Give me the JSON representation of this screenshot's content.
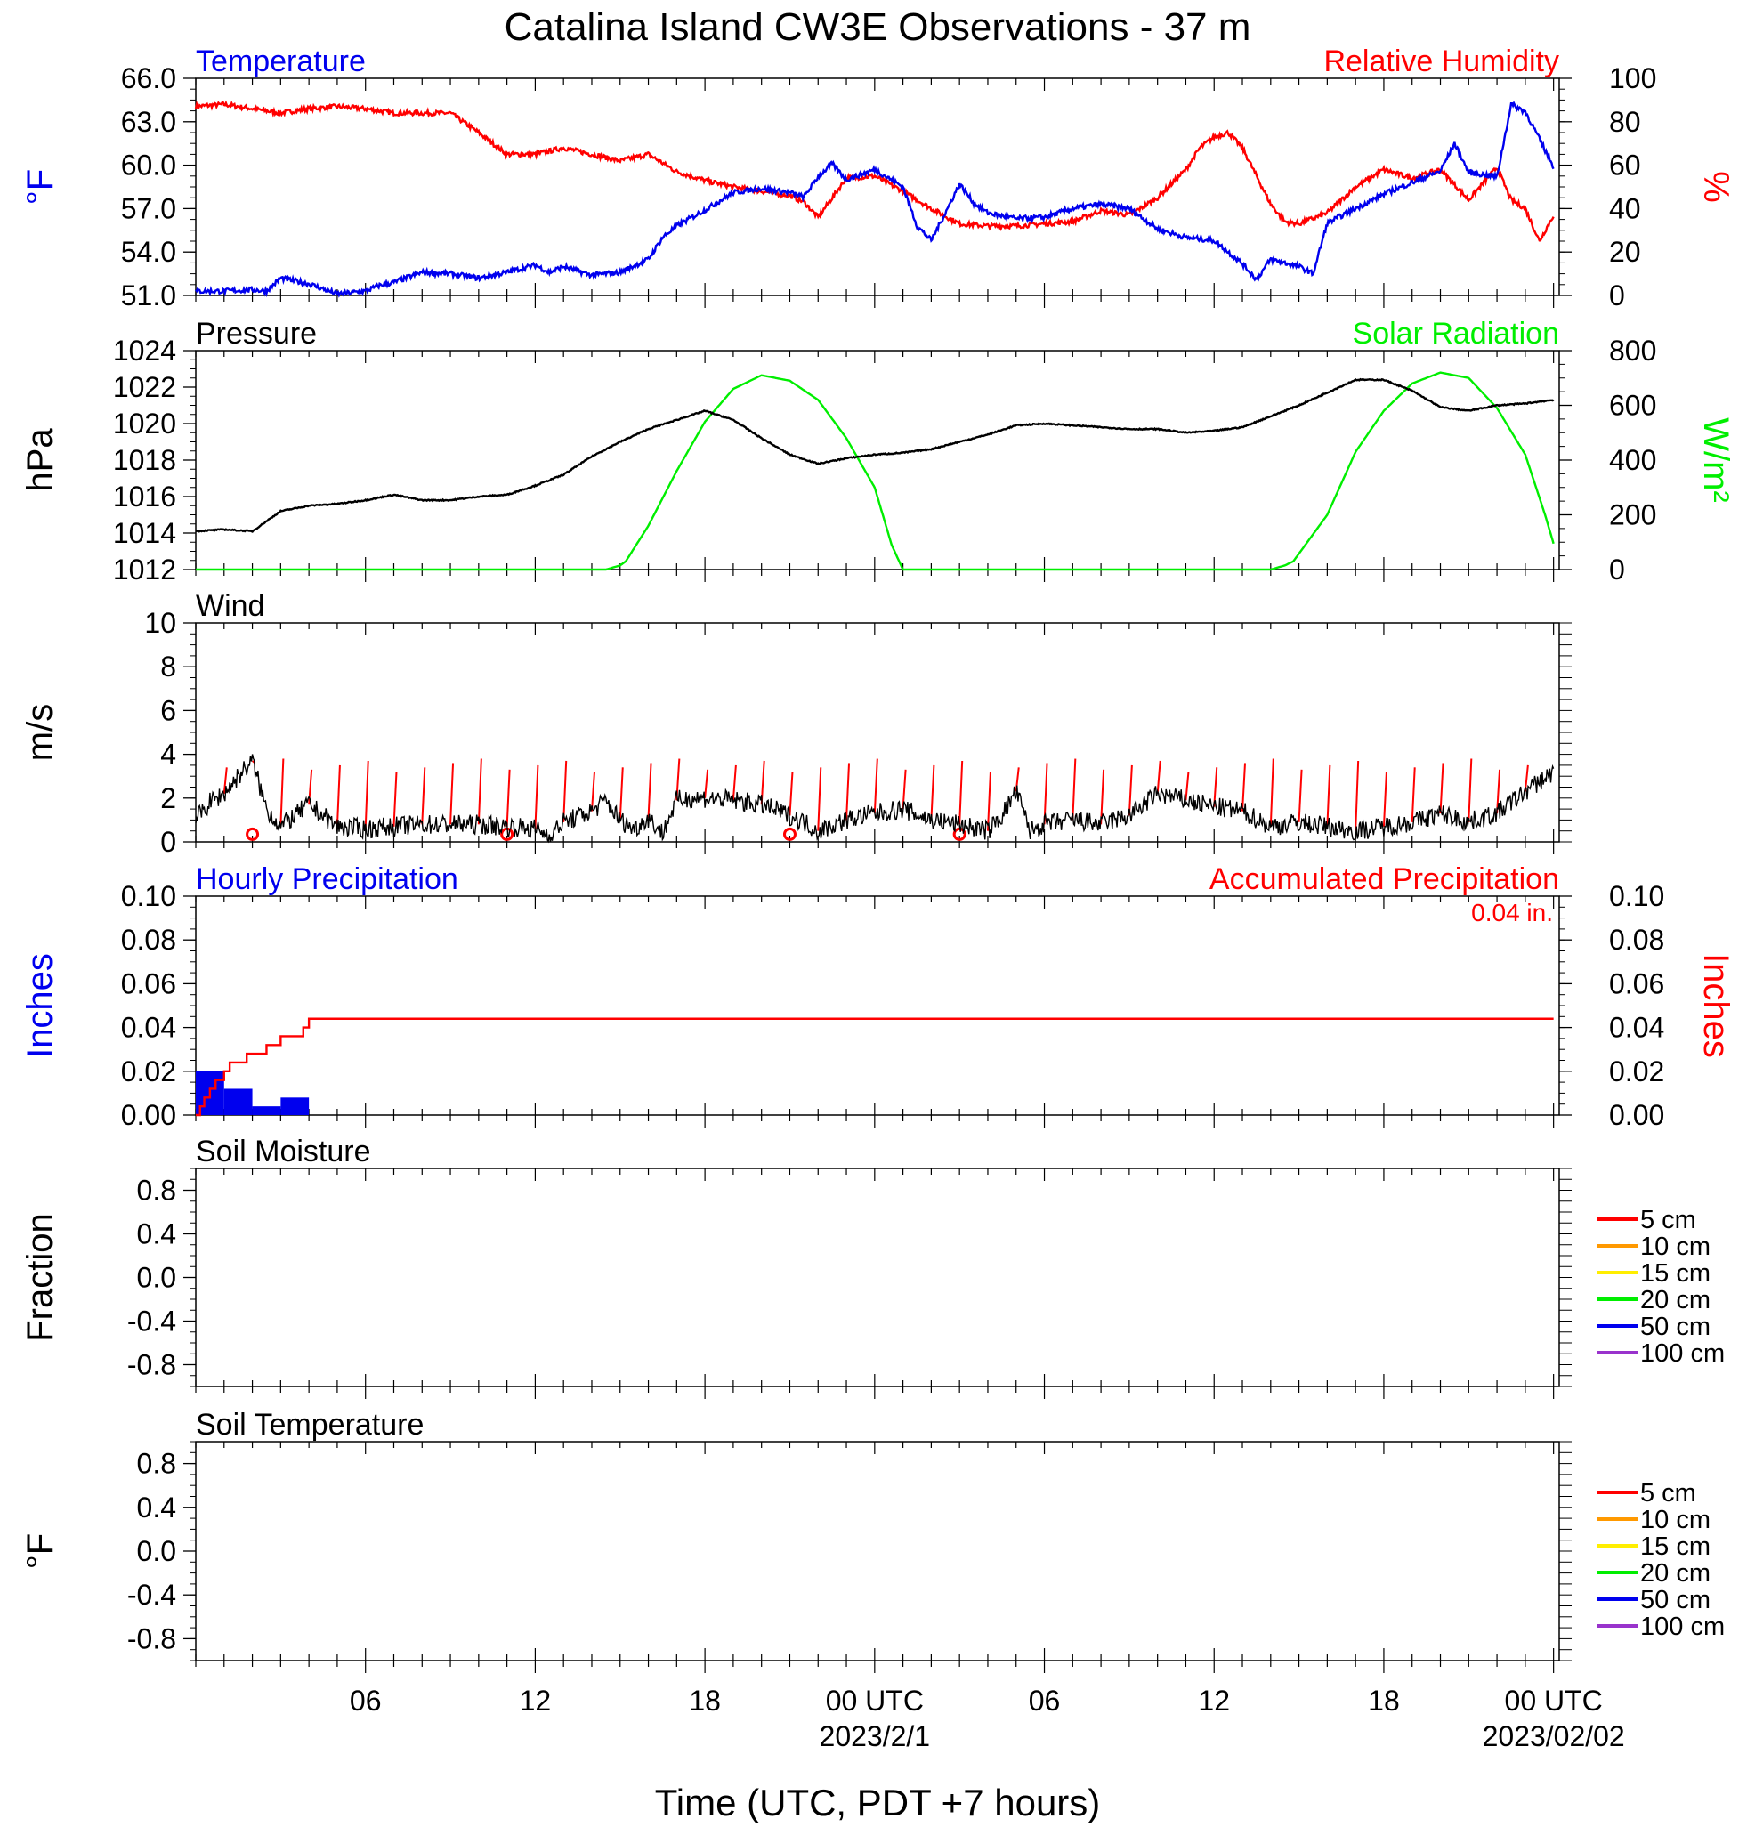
{
  "title": "Catalina Island CW3E Observations - 37 m",
  "x_axis": {
    "label": "Time (UTC, PDT +7 hours)",
    "ticks": [
      {
        "hour": 6,
        "label": "06"
      },
      {
        "hour": 12,
        "label": "12"
      },
      {
        "hour": 18,
        "label": "18"
      },
      {
        "hour": 24,
        "label": "00 UTC",
        "date": "2023/2/1"
      },
      {
        "hour": 30,
        "label": "06"
      },
      {
        "hour": 36,
        "label": "12"
      },
      {
        "hour": 42,
        "label": "18"
      },
      {
        "hour": 48,
        "label": "00 UTC",
        "date": "2023/02/02"
      }
    ]
  },
  "colors": {
    "temperature": "#0000ee",
    "humidity": "#ff0000",
    "pressure": "#000000",
    "solar": "#00ee00",
    "wind": "#000000",
    "wind_barb": "#ff0000",
    "hourly_precip": "#0000ee",
    "accum_precip": "#ff0000"
  },
  "panels": {
    "temp_rh": {
      "left_title": "Temperature",
      "right_title": "Relative Humidity",
      "left_unit": "°F",
      "right_unit": "%",
      "left_ticks": [
        "51.0",
        "54.0",
        "57.0",
        "60.0",
        "63.0",
        "66.0"
      ],
      "right_ticks": [
        "0",
        "20",
        "40",
        "60",
        "80",
        "100"
      ]
    },
    "pressure_solar": {
      "left_title": "Pressure",
      "right_title": "Solar Radiation",
      "left_unit": "hPa",
      "right_unit": "W/m²",
      "left_ticks": [
        "1012",
        "1014",
        "1016",
        "1018",
        "1020",
        "1022",
        "1024"
      ],
      "right_ticks": [
        "0",
        "200",
        "400",
        "600",
        "800"
      ]
    },
    "wind": {
      "left_title": "Wind",
      "left_unit": "m/s",
      "left_ticks": [
        "0",
        "2",
        "4",
        "6",
        "8",
        "10"
      ]
    },
    "precip": {
      "left_title": "Hourly Precipitation",
      "right_title": "Accumulated Precipitation",
      "total_label": "0.04 in.",
      "left_unit": "Inches",
      "right_unit": "Inches",
      "left_ticks": [
        "0.00",
        "0.02",
        "0.04",
        "0.06",
        "0.08",
        "0.10"
      ],
      "right_ticks": [
        "0.00",
        "0.02",
        "0.04",
        "0.06",
        "0.08",
        "0.10"
      ]
    },
    "soil_moisture": {
      "left_title": "Soil Moisture",
      "left_unit": "Fraction",
      "left_ticks": [
        "-0.8",
        "-0.4",
        "0.0",
        "0.4",
        "0.8"
      ],
      "legend": [
        {
          "label": "5 cm",
          "color": "#ff0000"
        },
        {
          "label": "10 cm",
          "color": "#ff9900"
        },
        {
          "label": "15 cm",
          "color": "#ffee00"
        },
        {
          "label": "20 cm",
          "color": "#00ee00"
        },
        {
          "label": "50 cm",
          "color": "#0000ee"
        },
        {
          "label": "100 cm",
          "color": "#9933cc"
        }
      ]
    },
    "soil_temp": {
      "left_title": "Soil Temperature",
      "left_unit": "°F",
      "left_ticks": [
        "-0.8",
        "-0.4",
        "0.0",
        "0.4",
        "0.8"
      ],
      "legend": [
        {
          "label": "5 cm",
          "color": "#ff0000"
        },
        {
          "label": "10 cm",
          "color": "#ff9900"
        },
        {
          "label": "15 cm",
          "color": "#ffee00"
        },
        {
          "label": "20 cm",
          "color": "#00ee00"
        },
        {
          "label": "50 cm",
          "color": "#0000ee"
        },
        {
          "label": "100 cm",
          "color": "#9933cc"
        }
      ]
    }
  },
  "chart_data": [
    {
      "type": "line",
      "title": "Temperature / Relative Humidity",
      "x_unit": "hours since 2023/1/31 00 UTC",
      "xlim": [
        0,
        48
      ],
      "ylim_left": [
        51,
        66
      ],
      "ylim_right": [
        0,
        100
      ],
      "series": [
        {
          "name": "Temperature",
          "axis": "left",
          "x": [
            0,
            1,
            2,
            2.5,
            3,
            4,
            5,
            6,
            6.5,
            7,
            8,
            9,
            10,
            11,
            12,
            12.5,
            13,
            14,
            15,
            16,
            16.5,
            17,
            18,
            19,
            20,
            21,
            21.5,
            22,
            22.5,
            23,
            24,
            25,
            25.5,
            26,
            26.5,
            27,
            27.5,
            28,
            29,
            30,
            31,
            32,
            33,
            34,
            35,
            36,
            37,
            37.5,
            38,
            39,
            39.5,
            40,
            41,
            42,
            43,
            44,
            44.5,
            45,
            46,
            46.5,
            47,
            48
          ],
          "y": [
            51.3,
            51.3,
            51.4,
            51.3,
            52.2,
            51.8,
            51.1,
            51.3,
            51.7,
            51.9,
            52.6,
            52.5,
            52.2,
            52.6,
            53.1,
            52.6,
            53.0,
            52.4,
            52.6,
            53.5,
            55.0,
            55.8,
            56.9,
            58.1,
            58.4,
            58.1,
            57.8,
            59.2,
            60.1,
            59.0,
            59.7,
            58.5,
            55.8,
            54.8,
            56.7,
            58.7,
            57.4,
            56.7,
            56.3,
            56.4,
            57.0,
            57.3,
            57.0,
            55.6,
            55.0,
            54.8,
            53.2,
            52.1,
            53.5,
            53.0,
            52.5,
            56.0,
            57.0,
            58.0,
            58.8,
            59.6,
            61.5,
            59.5,
            59.2,
            64.2,
            63.7,
            59.9
          ]
        },
        {
          "name": "Relative Humidity",
          "axis": "right",
          "x": [
            0,
            1,
            2,
            3,
            4,
            5,
            6,
            7,
            8,
            9,
            10,
            11,
            12,
            13,
            14,
            15,
            16,
            17,
            18,
            19,
            20,
            21,
            21.5,
            22,
            23,
            24,
            25,
            26,
            27,
            28,
            29,
            30,
            31,
            32,
            33,
            34,
            35,
            35.5,
            36,
            36.5,
            37,
            38,
            38.5,
            39,
            40,
            41,
            42,
            43,
            44,
            45,
            46,
            46.5,
            47,
            47.5,
            48
          ],
          "y": [
            87,
            88,
            86,
            84,
            86,
            87,
            86,
            84,
            84,
            84,
            75,
            65,
            65,
            68,
            65,
            62,
            65,
            57,
            53,
            50,
            48,
            46,
            43,
            36,
            54,
            55,
            48,
            40,
            33,
            32,
            32,
            33,
            34,
            39,
            37,
            45,
            58,
            68,
            73,
            75,
            68,
            42,
            34,
            33,
            38,
            50,
            58,
            54,
            58,
            44,
            59,
            44,
            40,
            25,
            37
          ]
        }
      ]
    },
    {
      "type": "line",
      "title": "Pressure / Solar Radiation",
      "x_unit": "hours since 2023/1/31 00 UTC",
      "xlim": [
        0,
        48
      ],
      "ylim_left": [
        1012,
        1024
      ],
      "ylim_right": [
        0,
        800
      ],
      "series": [
        {
          "name": "Pressure",
          "axis": "left",
          "x": [
            0,
            1,
            2,
            3,
            4,
            5,
            6,
            7,
            8,
            9,
            10,
            11,
            12,
            13,
            14,
            15,
            16,
            17,
            18,
            19,
            20,
            21,
            22,
            23,
            24,
            25,
            26,
            27,
            28,
            29,
            30,
            31,
            32,
            33,
            34,
            35,
            36,
            37,
            38,
            39,
            40,
            41,
            42,
            43,
            44,
            45,
            46,
            47,
            48
          ],
          "y": [
            1014.1,
            1014.2,
            1014.1,
            1015.2,
            1015.5,
            1015.6,
            1015.8,
            1016.1,
            1015.8,
            1015.8,
            1016.0,
            1016.1,
            1016.6,
            1017.2,
            1018.2,
            1019.0,
            1019.7,
            1020.2,
            1020.7,
            1020.2,
            1019.2,
            1018.3,
            1017.8,
            1018.1,
            1018.3,
            1018.4,
            1018.6,
            1019.0,
            1019.4,
            1019.9,
            1020.0,
            1019.9,
            1019.8,
            1019.7,
            1019.7,
            1019.5,
            1019.6,
            1019.8,
            1020.4,
            1021.0,
            1021.7,
            1022.4,
            1022.4,
            1021.8,
            1020.9,
            1020.7,
            1021.0,
            1021.1,
            1021.3
          ]
        },
        {
          "name": "Solar Radiation",
          "axis": "right",
          "x": [
            0,
            14,
            14.5,
            15,
            15.2,
            16,
            17,
            18,
            19,
            20,
            21,
            22,
            23,
            24,
            24.6,
            25,
            26,
            36,
            38,
            38.5,
            38.8,
            40,
            41,
            42,
            43,
            44,
            45,
            46,
            47,
            47.7,
            48
          ],
          "y": [
            0,
            0,
            0,
            15,
            30,
            160,
            360,
            540,
            660,
            710,
            690,
            620,
            480,
            300,
            90,
            0,
            0,
            0,
            0,
            15,
            30,
            200,
            430,
            580,
            680,
            720,
            700,
            590,
            420,
            200,
            95
          ]
        }
      ]
    },
    {
      "type": "line",
      "title": "Wind",
      "x_unit": "hours since 2023/1/31 00 UTC",
      "xlim": [
        0,
        48
      ],
      "ylim": [
        0,
        10
      ],
      "series": [
        {
          "name": "Wind speed",
          "x": [
            0,
            0.5,
            1,
            1.5,
            2,
            2.5,
            3,
            3.5,
            4,
            5,
            6,
            7,
            8,
            9,
            10,
            11,
            12,
            12.5,
            13,
            14,
            14.5,
            15,
            15.5,
            16,
            16.5,
            17,
            17.5,
            18,
            19,
            20,
            21,
            21.5,
            22,
            23,
            24,
            25,
            26,
            27,
            28,
            28.5,
            29,
            29.5,
            30,
            31,
            32,
            33,
            34,
            35,
            36,
            37,
            38,
            39,
            40,
            41,
            42,
            43,
            44,
            45,
            46,
            47,
            48
          ],
          "y": [
            1.0,
            1.8,
            2.2,
            3.0,
            3.7,
            1.5,
            0.7,
            1.2,
            1.7,
            0.7,
            0.6,
            0.7,
            0.8,
            0.8,
            0.8,
            0.7,
            0.6,
            0.3,
            0.9,
            1.4,
            1.9,
            1.0,
            0.6,
            1.1,
            0.4,
            1.9,
            2.0,
            2.0,
            1.9,
            1.7,
            1.2,
            0.9,
            0.5,
            1.0,
            1.3,
            1.5,
            1.0,
            0.8,
            0.5,
            1.2,
            2.3,
            0.5,
            0.8,
            1.0,
            0.8,
            1.2,
            2.2,
            1.9,
            1.6,
            1.4,
            0.7,
            0.9,
            0.7,
            0.5,
            0.7,
            0.9,
            1.3,
            0.9,
            1.3,
            2.3,
            3.2
          ]
        }
      ]
    },
    {
      "type": "bar",
      "title": "Hourly Precipitation / Accumulated Precipitation",
      "x_unit": "hours since 2023/1/31 00 UTC",
      "xlim": [
        0,
        48
      ],
      "ylim": [
        0,
        0.1
      ],
      "series": [
        {
          "name": "Hourly Precipitation",
          "type": "bar",
          "x": [
            0,
            1,
            2,
            3
          ],
          "values": [
            0.02,
            0.012,
            0.004,
            0.008
          ]
        },
        {
          "name": "Accumulated Precipitation",
          "type": "step",
          "x": [
            0,
            0.15,
            0.3,
            0.5,
            0.7,
            0.85,
            1.0,
            1.2,
            1.5,
            1.8,
            2.1,
            2.5,
            3.0,
            3.5,
            3.8,
            4.0,
            48
          ],
          "y": [
            0,
            0.004,
            0.008,
            0.012,
            0.016,
            0.016,
            0.02,
            0.024,
            0.024,
            0.028,
            0.028,
            0.032,
            0.036,
            0.036,
            0.04,
            0.044,
            0.044
          ]
        }
      ]
    },
    {
      "type": "line",
      "title": "Soil Moisture",
      "xlim": [
        0,
        48
      ],
      "ylim": [
        -1,
        1
      ],
      "series": []
    },
    {
      "type": "line",
      "title": "Soil Temperature",
      "xlim": [
        0,
        48
      ],
      "ylim": [
        -1,
        1
      ],
      "series": []
    }
  ]
}
